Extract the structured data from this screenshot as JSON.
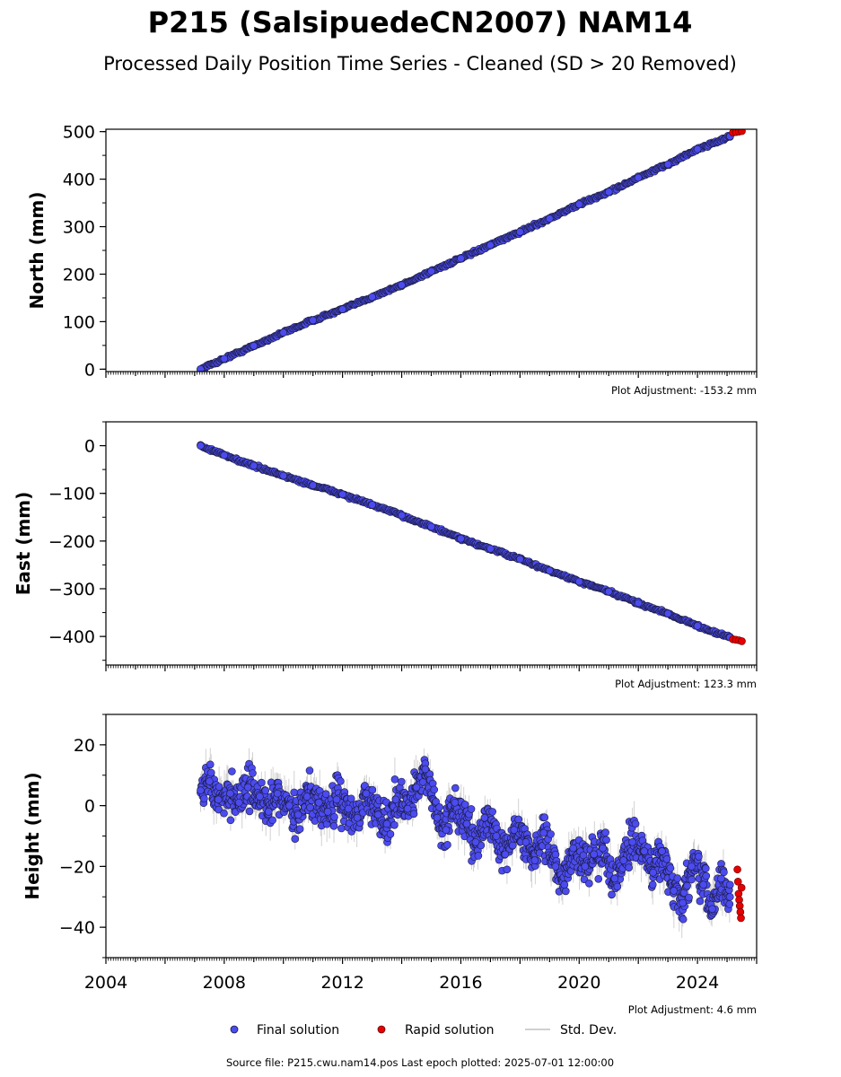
{
  "figure": {
    "title": "P215 (SalsipuedeCN2007) NAM14",
    "subtitle": "Processed Daily Position Time Series - Cleaned (SD > 20 Removed)",
    "source_note": "Source file: P215.cwu.nam14.pos  Last epoch plotted: 2025-07-01 12:00:00"
  },
  "legend": {
    "final_label": "Final solution",
    "rapid_label": "Rapid solution",
    "std_label": "Std. Dev."
  },
  "colors": {
    "final": "#4b4bf0",
    "final_edge": "#1a1a3a",
    "rapid": "#e60000",
    "std": "#b4b4b4"
  },
  "chart_data": [
    {
      "type": "scatter",
      "ylabel": "North (mm)",
      "adjustment": "Plot Adjustment: -153.2 mm",
      "xlim": [
        2004,
        2026
      ],
      "ylim": [
        -5,
        505
      ],
      "yticks": [
        0,
        100,
        200,
        300,
        400,
        500
      ],
      "ytick_labels": [
        "0",
        "100",
        "200",
        "300",
        "400",
        "500"
      ],
      "show_xtick_labels": false,
      "series": [
        {
          "name": "Final solution",
          "kind": "final",
          "x": [
            2007.2,
            2008.0,
            2009.0,
            2010.0,
            2011.0,
            2012.0,
            2013.0,
            2014.0,
            2015.0,
            2016.0,
            2017.0,
            2018.0,
            2019.0,
            2020.0,
            2021.0,
            2022.0,
            2023.0,
            2024.0,
            2025.1
          ],
          "y": [
            0,
            22,
            49,
            77,
            103,
            126,
            152,
            177,
            206,
            233,
            261,
            289,
            317,
            347,
            373,
            403,
            431,
            463,
            490
          ]
        },
        {
          "name": "Rapid solution",
          "kind": "rapid",
          "x": [
            2025.2,
            2025.3,
            2025.4,
            2025.5
          ],
          "y": [
            498,
            499,
            500,
            501
          ]
        }
      ]
    },
    {
      "type": "scatter",
      "ylabel": "East (mm)",
      "adjustment": "Plot Adjustment: 123.3 mm",
      "xlim": [
        2004,
        2026
      ],
      "ylim": [
        -460,
        50
      ],
      "yticks": [
        0,
        -100,
        -200,
        -300,
        -400
      ],
      "ytick_labels": [
        "0",
        "−100",
        "−200",
        "−300",
        "−400"
      ],
      "show_xtick_labels": false,
      "series": [
        {
          "name": "Final solution",
          "kind": "final",
          "x": [
            2007.2,
            2008.0,
            2009.0,
            2010.0,
            2011.0,
            2012.0,
            2013.0,
            2014.0,
            2015.0,
            2016.0,
            2017.0,
            2018.0,
            2019.0,
            2020.0,
            2021.0,
            2022.0,
            2023.0,
            2024.0,
            2025.1
          ],
          "y": [
            0,
            -20,
            -42,
            -63,
            -83,
            -102,
            -124,
            -146,
            -170,
            -195,
            -216,
            -238,
            -262,
            -285,
            -306,
            -330,
            -352,
            -378,
            -402
          ]
        },
        {
          "name": "Rapid solution",
          "kind": "rapid",
          "x": [
            2025.2,
            2025.3,
            2025.4,
            2025.5
          ],
          "y": [
            -406,
            -407,
            -408,
            -410
          ]
        }
      ]
    },
    {
      "type": "scatter",
      "ylabel": "Height (mm)",
      "adjustment": "Plot Adjustment: 4.6 mm",
      "xlim": [
        2004,
        2026
      ],
      "ylim": [
        -50,
        30
      ],
      "yticks": [
        20,
        0,
        -20,
        -40
      ],
      "ytick_labels": [
        "20",
        "0",
        "−20",
        "−40"
      ],
      "show_xtick_labels": true,
      "xticks": [
        2004,
        2008,
        2012,
        2016,
        2020,
        2024
      ],
      "xtick_labels": [
        "2004",
        "2008",
        "2012",
        "2016",
        "2020",
        "2024"
      ],
      "series": [
        {
          "name": "Final solution",
          "kind": "final",
          "x": [
            2007.2,
            2007.5,
            2007.8,
            2008.2,
            2008.5,
            2008.8,
            2009.2,
            2009.5,
            2009.8,
            2010.2,
            2010.5,
            2010.8,
            2011.2,
            2011.5,
            2011.8,
            2012.2,
            2012.5,
            2012.8,
            2013.2,
            2013.5,
            2013.8,
            2014.2,
            2014.5,
            2014.8,
            2015.2,
            2015.5,
            2015.8,
            2016.2,
            2016.5,
            2016.8,
            2017.2,
            2017.5,
            2017.8,
            2018.2,
            2018.5,
            2018.8,
            2019.2,
            2019.5,
            2019.8,
            2020.2,
            2020.5,
            2020.8,
            2021.2,
            2021.5,
            2021.8,
            2022.2,
            2022.5,
            2022.8,
            2023.2,
            2023.5,
            2023.8,
            2024.2,
            2024.5,
            2024.8,
            2025.1
          ],
          "y": [
            5,
            8,
            2,
            4,
            1,
            6,
            3,
            -2,
            4,
            0,
            -3,
            3,
            1,
            -2,
            2,
            -1,
            -4,
            4,
            -3,
            -6,
            2,
            -1,
            6,
            12,
            -4,
            -8,
            1,
            -6,
            -12,
            -4,
            -10,
            -16,
            -8,
            -12,
            -18,
            -9,
            -20,
            -26,
            -14,
            -20,
            -16,
            -14,
            -24,
            -18,
            -12,
            -15,
            -22,
            -15,
            -28,
            -32,
            -20,
            -26,
            -34,
            -24,
            -30
          ]
        },
        {
          "name": "Rapid solution",
          "kind": "rapid",
          "x": [
            2025.35,
            2025.37,
            2025.39,
            2025.41,
            2025.43,
            2025.45,
            2025.47,
            2025.49
          ],
          "y": [
            -21,
            -25,
            -29,
            -31,
            -33,
            -35,
            -37,
            -27
          ]
        }
      ]
    }
  ]
}
